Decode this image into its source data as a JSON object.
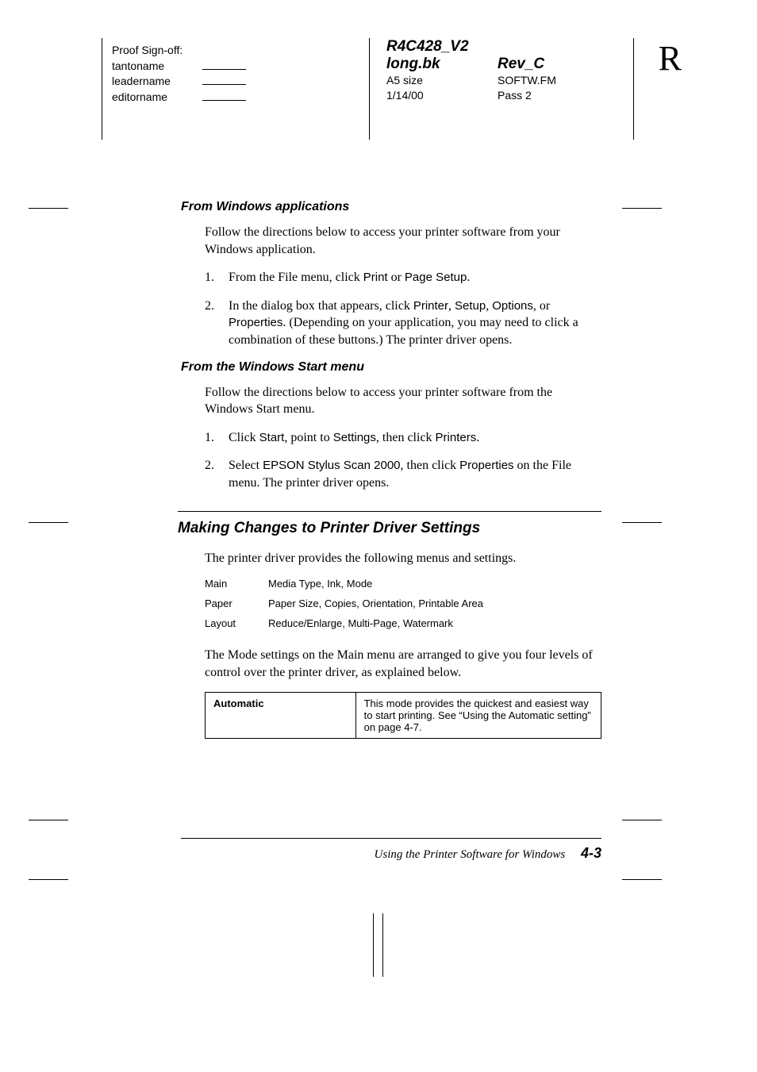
{
  "header": {
    "proof_title": "Proof Sign-off:",
    "proof_lines": [
      "tantoname",
      "leadername",
      "editorname"
    ],
    "doc_code": "R4C428_V2",
    "doc_file": "long.bk",
    "doc_rev": "Rev_C",
    "doc_size": "A5 size",
    "doc_fm": "SOFTW.FM",
    "doc_date": "1/14/00",
    "doc_pass": "Pass 2",
    "side": "R"
  },
  "sec1": {
    "title": "From Windows applications",
    "intro": "Follow the directions below to access your printer software from your Windows application.",
    "step1_pre": "From the File menu, click ",
    "step1_ui1": "Print",
    "step1_mid": " or ",
    "step1_ui2": "Page Setup",
    "step1_post": ".",
    "step2_pre": "In the dialog box that appears, click ",
    "step2_ui1": "Printer",
    "step2_s1": ", ",
    "step2_ui2": "Setup",
    "step2_s2": ", ",
    "step2_ui3": "Options",
    "step2_s3": ", or ",
    "step2_ui4": "Properties",
    "step2_post": ". (Depending on your application, you may need to click a combination of these buttons.) The printer driver opens."
  },
  "sec2": {
    "title": "From the Windows Start menu",
    "intro": "Follow the directions below to access your printer software from the Windows Start menu.",
    "step1_pre": "Click ",
    "step1_ui1": "Start",
    "step1_mid1": ", point to ",
    "step1_ui2": "Settings",
    "step1_mid2": ", then click ",
    "step1_ui3": "Printers",
    "step1_post": ".",
    "step2_pre": "Select ",
    "step2_ui1": "EPSON Stylus Scan 2000",
    "step2_mid": ", then click ",
    "step2_ui2": "Properties",
    "step2_post": " on the File menu. The printer driver opens."
  },
  "sec3": {
    "title": "Making Changes to Printer Driver Settings",
    "intro": "The printer driver provides the following menus and settings.",
    "menus": [
      {
        "name": "Main",
        "desc": "Media Type, Ink, Mode"
      },
      {
        "name": "Paper",
        "desc": "Paper Size, Copies, Orientation, Printable Area"
      },
      {
        "name": "Layout",
        "desc": "Reduce/Enlarge, Multi-Page, Watermark"
      }
    ],
    "modes_intro": "The Mode settings on the Main menu are arranged to give you four levels of control over the printer driver, as explained below.",
    "modes": [
      {
        "name": "Automatic",
        "desc": "This mode provides the quickest and easiest way to start printing. See “Using the Automatic setting” on page 4-7."
      }
    ]
  },
  "footer": {
    "title": "Using the Printer Software for Windows",
    "page": "4-3"
  },
  "nums": {
    "n1": "1.",
    "n2": "2."
  }
}
